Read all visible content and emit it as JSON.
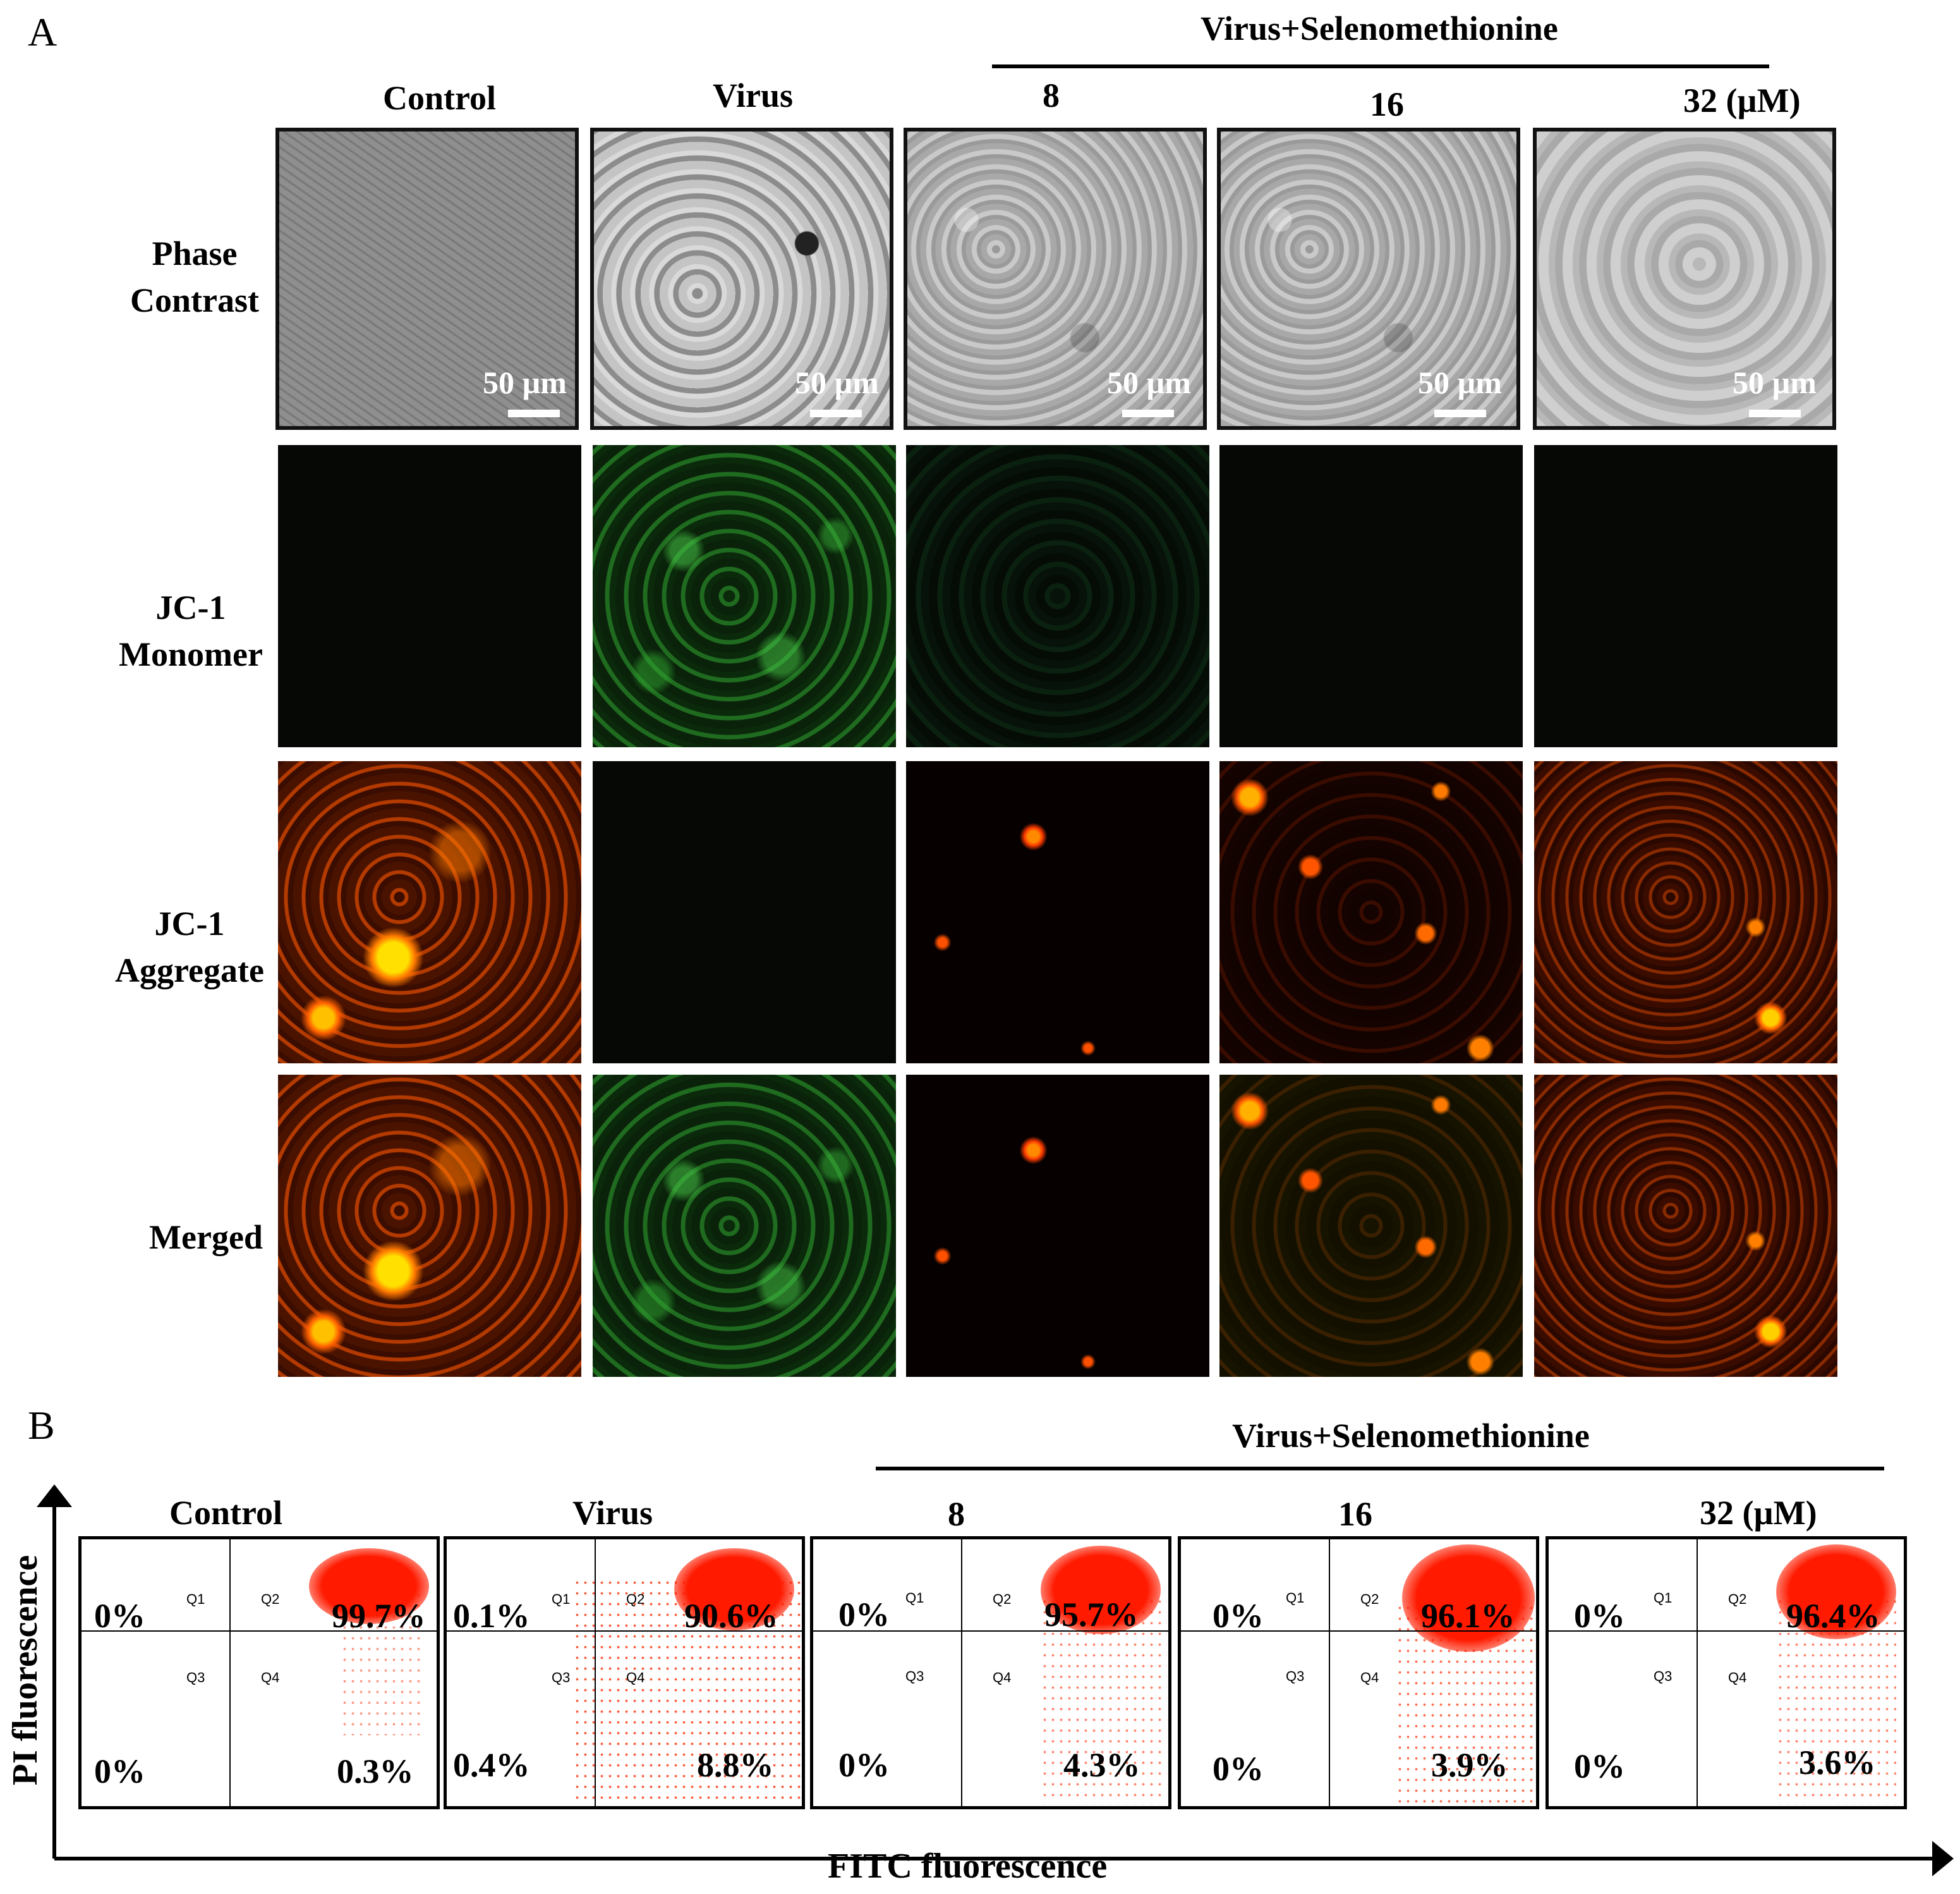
{
  "panel_a": {
    "letter": "A",
    "group_header": "Virus+Selenomethionine",
    "columns": [
      "Control",
      "Virus",
      "8",
      "16",
      "32 (µM)"
    ],
    "rows": [
      "Phase Contrast",
      "JC-1 Monomer",
      "JC-1 Aggregate",
      "Merged"
    ],
    "scale_bar": "50 µm"
  },
  "panel_b": {
    "letter": "B",
    "group_header": "Virus+Selenomethionine",
    "columns": [
      "Control",
      "Virus",
      "8",
      "16",
      "32 (µM)"
    ],
    "quadrant_labels": [
      "Q1",
      "Q2",
      "Q3",
      "Q4"
    ],
    "y_axis_label": "PI fluorescence",
    "x_axis_label": "FITC fluorescence",
    "plots": [
      {
        "q1": "0%",
        "q2": "99.7%",
        "q3": "0%",
        "q4": "0.3%"
      },
      {
        "q1": "0.1%",
        "q2": "90.6%",
        "q3": "0.4%",
        "q4": "8.8%"
      },
      {
        "q1": "0%",
        "q2": "95.7%",
        "q3": "0%",
        "q4": "4.3%"
      },
      {
        "q1": "0%",
        "q2": "96.1%",
        "q3": "0%",
        "q4": "3.9%"
      },
      {
        "q1": "0%",
        "q2": "96.4%",
        "q3": "0%",
        "q4": "3.6%"
      }
    ]
  }
}
